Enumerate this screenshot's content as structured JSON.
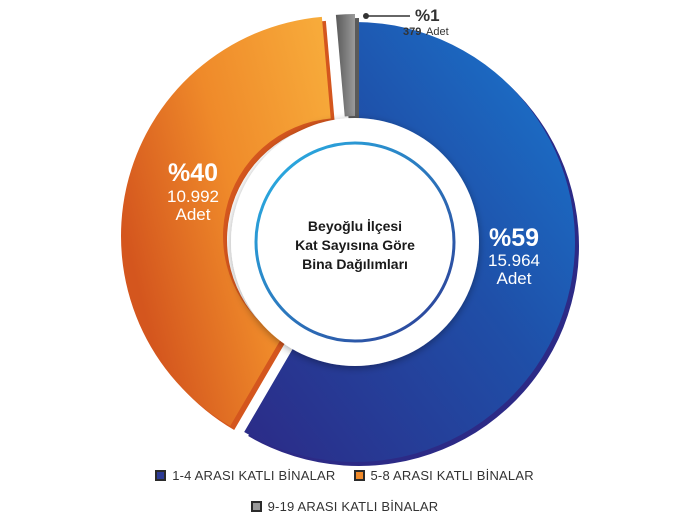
{
  "chart_data": {
    "type": "pie",
    "title": "Beyoğlu İlçesi Kat Sayısına Göre Bina Dağılımları",
    "center_lines": [
      "Beyoğlu İlçesi",
      "Kat Sayısına Göre",
      "Bina Dağılımları"
    ],
    "unit": "Adet",
    "slices": [
      {
        "label": "1-4 ARASI KATLI BİNALAR",
        "percent_label": "%59",
        "value": 15964,
        "value_label": "15.964",
        "unit_label": "Adet",
        "color": "#1f63b8",
        "color_dark": "#2c2a86"
      },
      {
        "label": "5-8 ARASI KATLI BİNALAR",
        "percent_label": "%40",
        "value": 10992,
        "value_label": "10.992",
        "unit_label": "Adet",
        "color": "#f4a030",
        "color_dark": "#d4561e"
      },
      {
        "label": "9-19 ARASI KATLI BİNALAR",
        "percent_label": "%1",
        "value": 379,
        "value_label": "379",
        "unit_label": "Adet",
        "color": "#8a8a8a",
        "color_dark": "#5a5a5a"
      }
    ],
    "legend": [
      "1-4 ARASI KATLI BİNALAR",
      "5-8 ARASI KATLI BİNALAR",
      "9-19 ARASI KATLI BİNALAR"
    ],
    "legend_placement": "bottom"
  }
}
